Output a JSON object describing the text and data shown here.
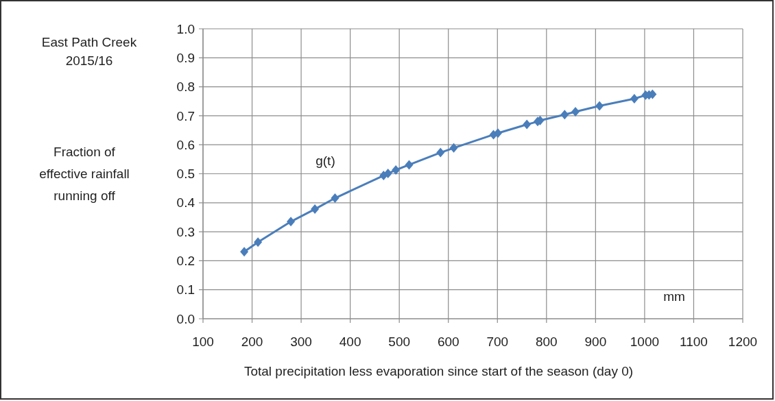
{
  "chart_data": {
    "type": "line",
    "title": "East Path Creek 2015/16",
    "ylabel": "Fraction of effective rainfall running off",
    "xlabel": "Total precipitation less evaporation since start of the season (day 0)",
    "annotations": [
      "mm"
    ],
    "series": [
      {
        "name": "g(t)",
        "color": "#4a7ebb",
        "x": [
          184,
          212,
          279,
          328,
          369,
          468,
          477,
          493,
          520,
          584,
          611,
          692,
          701,
          760,
          782,
          787,
          837,
          859,
          908,
          979,
          1002,
          1009,
          1016
        ],
        "values": [
          0.231,
          0.264,
          0.335,
          0.378,
          0.416,
          0.494,
          0.501,
          0.513,
          0.531,
          0.573,
          0.589,
          0.635,
          0.64,
          0.67,
          0.68,
          0.684,
          0.704,
          0.714,
          0.734,
          0.759,
          0.771,
          0.772,
          0.774
        ]
      }
    ],
    "xlim": [
      100,
      1200
    ],
    "xticks": [
      100,
      200,
      300,
      400,
      500,
      600,
      700,
      800,
      900,
      1000,
      1100,
      1200
    ],
    "ylim": [
      0,
      1
    ],
    "yticks": [
      {
        "value": 0,
        "label": "0.0"
      },
      {
        "value": 0.1,
        "label": "0.1"
      },
      {
        "value": 0.2,
        "label": "0.2"
      },
      {
        "value": 0.3,
        "label": "0.3"
      },
      {
        "value": 0.4,
        "label": "0.4"
      },
      {
        "value": 0.5,
        "label": "0.5"
      },
      {
        "value": 0.6,
        "label": "0.6"
      },
      {
        "value": 0.7,
        "label": "0.7"
      },
      {
        "value": 0.8,
        "label": "0.8"
      },
      {
        "value": 0.9,
        "label": "0.9"
      },
      {
        "value": 1,
        "label": "1.0"
      }
    ],
    "grid": true,
    "marker": "diamond",
    "line_style": "solid"
  }
}
